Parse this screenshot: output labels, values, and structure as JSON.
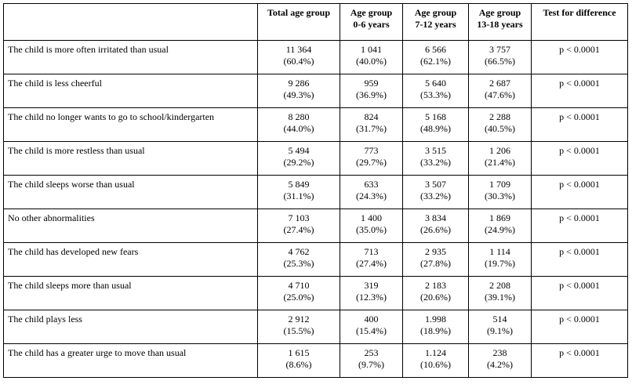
{
  "table": {
    "headers": [
      {
        "line1": "",
        "line2": ""
      },
      {
        "line1": "Total age group",
        "line2": ""
      },
      {
        "line1": "Age group",
        "line2": "0-6 years"
      },
      {
        "line1": "Age group",
        "line2": "7-12 years"
      },
      {
        "line1": "Age group",
        "line2": "13-18 years"
      },
      {
        "line1": "Test for difference",
        "line2": ""
      }
    ],
    "rows": [
      {
        "label": "The child is more often irritated than usual",
        "total": {
          "n": "11 364",
          "p": "(60.4%)"
        },
        "g1": {
          "n": "1 041",
          "p": "(40.0%)"
        },
        "g2": {
          "n": "6 566",
          "p": "(62.1%)"
        },
        "g3": {
          "n": "3 757",
          "p": "(66.5%)"
        },
        "test": "p < 0.0001"
      },
      {
        "label": "The child is less cheerful",
        "total": {
          "n": "9 286",
          "p": "(49.3%)"
        },
        "g1": {
          "n": "959",
          "p": "(36.9%)"
        },
        "g2": {
          "n": "5 640",
          "p": "(53.3%)"
        },
        "g3": {
          "n": "2 687",
          "p": "(47.6%)"
        },
        "test": "p < 0.0001"
      },
      {
        "label": "The child no longer wants to go to school/kindergarten",
        "total": {
          "n": "8 280",
          "p": "(44.0%)"
        },
        "g1": {
          "n": "824",
          "p": "(31.7%)"
        },
        "g2": {
          "n": "5 168",
          "p": "(48.9%)"
        },
        "g3": {
          "n": "2 288",
          "p": "(40.5%)"
        },
        "test": "p < 0.0001"
      },
      {
        "label": "The child is more restless than usual",
        "total": {
          "n": "5 494",
          "p": "(29.2%)"
        },
        "g1": {
          "n": "773",
          "p": "(29.7%)"
        },
        "g2": {
          "n": "3 515",
          "p": "(33.2%)"
        },
        "g3": {
          "n": "1 206",
          "p": "(21.4%)"
        },
        "test": "p < 0.0001"
      },
      {
        "label": "The child sleeps worse than usual",
        "total": {
          "n": "5 849",
          "p": "(31.1%)"
        },
        "g1": {
          "n": "633",
          "p": "(24.3%)"
        },
        "g2": {
          "n": "3 507",
          "p": "(33.2%)"
        },
        "g3": {
          "n": "1 709",
          "p": "(30.3%)"
        },
        "test": "p < 0.0001"
      },
      {
        "label": "No other abnormalities",
        "total": {
          "n": "7 103",
          "p": "(27.4%)"
        },
        "g1": {
          "n": "1 400",
          "p": "(35.0%)"
        },
        "g2": {
          "n": "3 834",
          "p": "(26.6%)"
        },
        "g3": {
          "n": "1 869",
          "p": "(24.9%)"
        },
        "test": "p < 0.0001"
      },
      {
        "label": "The child has developed new fears",
        "total": {
          "n": "4 762",
          "p": "(25.3%)"
        },
        "g1": {
          "n": "713",
          "p": "(27.4%)"
        },
        "g2": {
          "n": "2 935",
          "p": "(27.8%)"
        },
        "g3": {
          "n": "1 114",
          "p": "(19.7%)"
        },
        "test": "p < 0.0001"
      },
      {
        "label": "The child sleeps more than usual",
        "total": {
          "n": "4 710",
          "p": "(25.0%)"
        },
        "g1": {
          "n": "319",
          "p": "(12.3%)"
        },
        "g2": {
          "n": "2 183",
          "p": "(20.6%)"
        },
        "g3": {
          "n": "2 208",
          "p": "(39.1%)"
        },
        "test": "p < 0.0001"
      },
      {
        "label": "The child plays less",
        "total": {
          "n": "2 912",
          "p": "(15.5%)"
        },
        "g1": {
          "n": "400",
          "p": "(15.4%)"
        },
        "g2": {
          "n": "1.998",
          "p": "(18.9%)"
        },
        "g3": {
          "n": "514",
          "p": "(9.1%)"
        },
        "test": "p < 0.0001"
      },
      {
        "label": "The child has a greater urge to move than usual",
        "total": {
          "n": "1 615",
          "p": "(8.6%)"
        },
        "g1": {
          "n": "253",
          "p": "(9.7%)"
        },
        "g2": {
          "n": "1.124",
          "p": "(10.6%)"
        },
        "g3": {
          "n": "238",
          "p": "(4.2%)"
        },
        "test": "p < 0.0001"
      }
    ]
  }
}
